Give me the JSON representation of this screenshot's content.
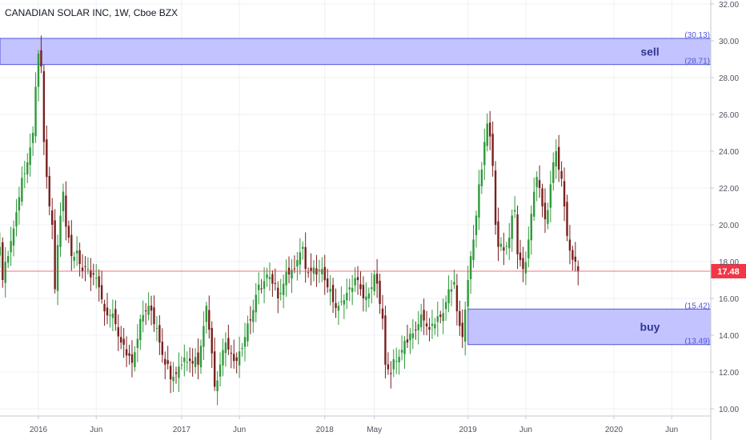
{
  "chart_data": {
    "type": "candlestick",
    "title": "CANADIAN SOLAR INC, 1W, Cboe BZX",
    "price_axis": {
      "ylim": [
        10,
        32
      ],
      "ticks": [
        "10.00",
        "12.00",
        "14.00",
        "16.00",
        "18.00",
        "20.00",
        "22.00",
        "24.00",
        "26.00",
        "28.00",
        "30.00",
        "32.00"
      ],
      "grid": true,
      "position": "right"
    },
    "time_axis": {
      "ticks": [
        "2016",
        "Jun",
        "2017",
        "Jun",
        "2018",
        "May",
        "2019",
        "Jun",
        "2020",
        "Jun"
      ],
      "tick_weeks": [
        0,
        21,
        52,
        73,
        104,
        122,
        156,
        177,
        209,
        230
      ]
    },
    "last_price": {
      "value": 17.48,
      "label": "17.48",
      "color": "#f23645"
    },
    "zones": [
      {
        "label": "sell",
        "top": 30.13,
        "bottom": 28.71,
        "top_label": "(30.13)",
        "bottom_label": "(28.71)",
        "from_week": -14
      },
      {
        "label": "buy",
        "top": 15.42,
        "bottom": 13.49,
        "top_label": "(15.42)",
        "bottom_label": "(13.49)",
        "from_week": 156
      }
    ],
    "colors": {
      "up": "#2e9a3a",
      "down": "#7a1f1f",
      "zone_fill": "#b8b9ff",
      "zone_border": "#5057d8",
      "zone_text": "#2f3890"
    },
    "candles_close_anchors": [
      [
        -14,
        18.8
      ],
      [
        -13,
        17.0
      ],
      [
        -11,
        18.3
      ],
      [
        -9,
        19.8
      ],
      [
        -7,
        21.5
      ],
      [
        -5,
        22.8
      ],
      [
        -3,
        24.2
      ],
      [
        -2,
        25.0
      ],
      [
        -1,
        27.5
      ],
      [
        0,
        29.3
      ],
      [
        1,
        28.6
      ],
      [
        2,
        24.5
      ],
      [
        3,
        22.6
      ],
      [
        4,
        21.0
      ],
      [
        5,
        20.0
      ],
      [
        6,
        16.5
      ],
      [
        7,
        18.9
      ],
      [
        8,
        20.5
      ],
      [
        9,
        21.8
      ],
      [
        10,
        19.9
      ],
      [
        11,
        19.3
      ],
      [
        12,
        18.3
      ],
      [
        14,
        18.6
      ],
      [
        16,
        17.5
      ],
      [
        18,
        17.6
      ],
      [
        20,
        17.3
      ],
      [
        22,
        16.6
      ],
      [
        24,
        15.3
      ],
      [
        26,
        15.1
      ],
      [
        28,
        14.6
      ],
      [
        30,
        13.6
      ],
      [
        32,
        12.9
      ],
      [
        34,
        12.5
      ],
      [
        36,
        13.8
      ],
      [
        38,
        15.1
      ],
      [
        40,
        15.6
      ],
      [
        42,
        14.6
      ],
      [
        44,
        13.6
      ],
      [
        46,
        12.4
      ],
      [
        48,
        11.6
      ],
      [
        50,
        11.9
      ],
      [
        52,
        12.4
      ],
      [
        55,
        12.6
      ],
      [
        58,
        12.4
      ],
      [
        60,
        14.5
      ],
      [
        61,
        15.6
      ],
      [
        62,
        14.3
      ],
      [
        64,
        11.2
      ],
      [
        66,
        12.4
      ],
      [
        68,
        13.6
      ],
      [
        70,
        13.0
      ],
      [
        72,
        12.6
      ],
      [
        74,
        13.3
      ],
      [
        75,
        13.9
      ],
      [
        77,
        14.8
      ],
      [
        79,
        16.2
      ],
      [
        81,
        16.5
      ],
      [
        83,
        17.3
      ],
      [
        85,
        16.8
      ],
      [
        87,
        16.0
      ],
      [
        89,
        16.8
      ],
      [
        91,
        17.3
      ],
      [
        93,
        17.6
      ],
      [
        95,
        18.5
      ],
      [
        96,
        18.8
      ],
      [
        97,
        17.6
      ],
      [
        99,
        17.5
      ],
      [
        101,
        17.3
      ],
      [
        103,
        17.6
      ],
      [
        105,
        16.6
      ],
      [
        107,
        15.8
      ],
      [
        109,
        15.6
      ],
      [
        111,
        15.9
      ],
      [
        113,
        16.6
      ],
      [
        115,
        17.1
      ],
      [
        117,
        16.5
      ],
      [
        119,
        16.1
      ],
      [
        121,
        16.6
      ],
      [
        122,
        17.3
      ],
      [
        123,
        16.8
      ],
      [
        124,
        15.7
      ],
      [
        125,
        14.9
      ],
      [
        126,
        12.4
      ],
      [
        128,
        11.9
      ],
      [
        130,
        12.6
      ],
      [
        132,
        13.2
      ],
      [
        134,
        13.6
      ],
      [
        136,
        14.1
      ],
      [
        138,
        14.6
      ],
      [
        140,
        14.8
      ],
      [
        142,
        14.3
      ],
      [
        144,
        14.6
      ],
      [
        146,
        15.0
      ],
      [
        147,
        15.2
      ],
      [
        148,
        15.8
      ],
      [
        149,
        16.5
      ],
      [
        151,
        16.9
      ],
      [
        152,
        15.3
      ],
      [
        153,
        14.5
      ],
      [
        154,
        13.9
      ],
      [
        155,
        15.4
      ],
      [
        156,
        17.0
      ],
      [
        157,
        18.3
      ],
      [
        158,
        19.2
      ],
      [
        159,
        20.5
      ],
      [
        160,
        22.2
      ],
      [
        161,
        23.0
      ],
      [
        162,
        24.5
      ],
      [
        163,
        25.5
      ],
      [
        164,
        24.8
      ],
      [
        165,
        23.2
      ],
      [
        166,
        20.0
      ],
      [
        167,
        18.8
      ],
      [
        169,
        18.6
      ],
      [
        171,
        19.3
      ],
      [
        172,
        20.5
      ],
      [
        173,
        20.8
      ],
      [
        174,
        18.4
      ],
      [
        176,
        17.6
      ],
      [
        178,
        19.2
      ],
      [
        179,
        20.6
      ],
      [
        180,
        21.8
      ],
      [
        181,
        22.6
      ],
      [
        182,
        22.0
      ],
      [
        183,
        21.0
      ],
      [
        184,
        20.3
      ],
      [
        185,
        20.8
      ],
      [
        186,
        22.2
      ],
      [
        187,
        23.4
      ],
      [
        188,
        24.0
      ],
      [
        189,
        23.0
      ],
      [
        190,
        22.5
      ],
      [
        191,
        21.0
      ],
      [
        192,
        19.4
      ],
      [
        193,
        18.6
      ],
      [
        194,
        18.1
      ],
      [
        195,
        18.0
      ],
      [
        196,
        17.48
      ]
    ],
    "grid": true,
    "legend": "none"
  }
}
